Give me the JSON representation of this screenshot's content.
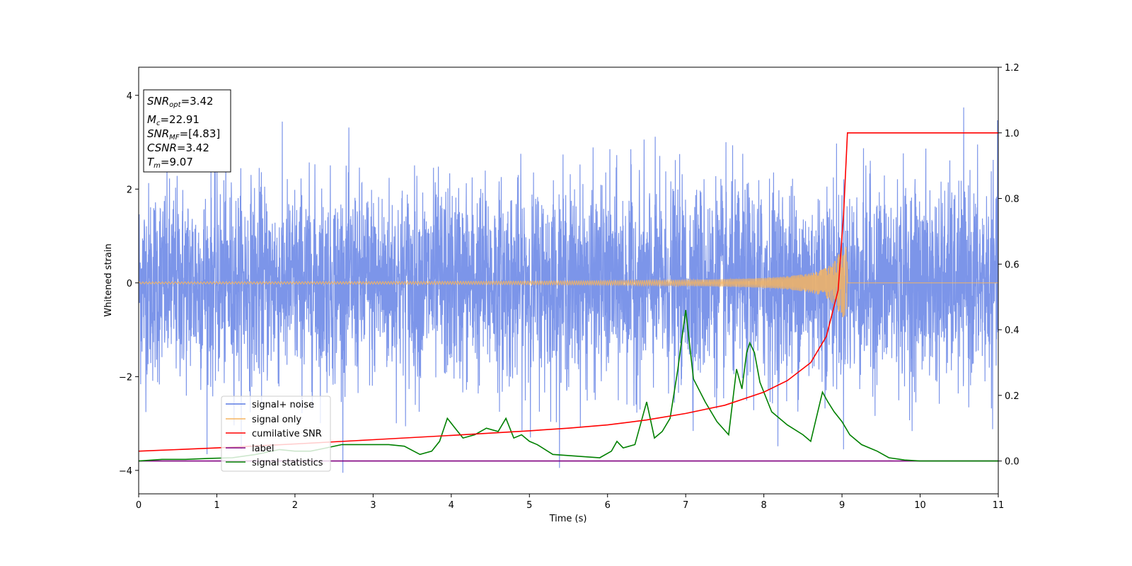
{
  "chart_data": {
    "type": "line",
    "xlabel": "Time (s)",
    "ylabel": "Whitened strain",
    "xlim": [
      0,
      11
    ],
    "ylim": [
      -4.5,
      4.6
    ],
    "y2lim": [
      -0.1,
      1.2
    ],
    "xticks": [
      "0",
      "1",
      "2",
      "3",
      "4",
      "5",
      "6",
      "7",
      "8",
      "9",
      "10",
      "11"
    ],
    "yticks": [
      "−4",
      "−2",
      "0",
      "2",
      "4"
    ],
    "y2ticks": [
      "0.0",
      "0.2",
      "0.4",
      "0.6",
      "0.8",
      "1.0",
      "1.2"
    ],
    "grid": false,
    "legend_position": "lower-left",
    "info_box": {
      "snr_opt": {
        "base": "SNR",
        "sub": "opt",
        "value": "=3.42"
      },
      "mc": {
        "base": "M",
        "sub": "c",
        "value": "=22.91"
      },
      "snr_mf": {
        "base": "SNR",
        "sub": "MF",
        "value": "=[4.83]"
      },
      "csnr": {
        "base": "CSNR",
        "sub": "",
        "value": "=3.42"
      },
      "tm": {
        "base": "T",
        "sub": "m",
        "value": "=9.07"
      }
    },
    "series": [
      {
        "name": "signal+ noise",
        "color": "#5b7be3",
        "axis": "left",
        "description_values": {
          "mean": 0.0,
          "std": 1.0,
          "typical_peak_range": [
            -3.5,
            3.7
          ]
        }
      },
      {
        "name": "signal only",
        "color": "#f5b461",
        "axis": "left",
        "chirp": {
          "start_amplitude": 0.02,
          "merger_time": 9.07,
          "peak_amplitude": 0.75
        }
      },
      {
        "name": "cumilative SNR",
        "color": "#ff0000",
        "axis": "right",
        "x": [
          0,
          1,
          2,
          3,
          4,
          5,
          5.5,
          6,
          6.5,
          7,
          7.5,
          8,
          8.3,
          8.6,
          8.8,
          8.95,
          9.02,
          9.07,
          9.5,
          10,
          11
        ],
        "y": [
          0.03,
          0.04,
          0.052,
          0.065,
          0.078,
          0.092,
          0.1,
          0.11,
          0.125,
          0.145,
          0.17,
          0.21,
          0.245,
          0.3,
          0.38,
          0.52,
          0.75,
          1.0,
          1.0,
          1.0,
          1.0
        ]
      },
      {
        "name": "label",
        "color": "#800080",
        "axis": "right",
        "x": [
          0,
          11
        ],
        "y": [
          0,
          0
        ]
      },
      {
        "name": "signal statistics",
        "color": "#008000",
        "axis": "right",
        "x": [
          0,
          0.3,
          0.6,
          0.9,
          1.2,
          1.5,
          1.8,
          2.0,
          2.2,
          2.4,
          2.6,
          2.8,
          3.0,
          3.2,
          3.4,
          3.6,
          3.75,
          3.85,
          3.95,
          4.05,
          4.15,
          4.3,
          4.45,
          4.6,
          4.7,
          4.8,
          4.9,
          5.0,
          5.1,
          5.3,
          5.6,
          5.9,
          6.05,
          6.12,
          6.2,
          6.35,
          6.5,
          6.6,
          6.7,
          6.8,
          6.9,
          7.0,
          7.1,
          7.25,
          7.4,
          7.55,
          7.65,
          7.72,
          7.78,
          7.82,
          7.88,
          7.95,
          8.1,
          8.3,
          8.5,
          8.6,
          8.75,
          8.82,
          8.9,
          9.0,
          9.1,
          9.25,
          9.45,
          9.6,
          9.8,
          10.0,
          10.5,
          11.0
        ],
        "y": [
          0.0,
          0.005,
          0.005,
          0.008,
          0.01,
          0.02,
          0.035,
          0.03,
          0.03,
          0.04,
          0.05,
          0.05,
          0.05,
          0.05,
          0.045,
          0.02,
          0.03,
          0.06,
          0.13,
          0.1,
          0.07,
          0.08,
          0.1,
          0.09,
          0.13,
          0.07,
          0.08,
          0.06,
          0.05,
          0.02,
          0.015,
          0.01,
          0.03,
          0.06,
          0.04,
          0.05,
          0.18,
          0.07,
          0.09,
          0.13,
          0.28,
          0.46,
          0.25,
          0.18,
          0.12,
          0.08,
          0.28,
          0.22,
          0.33,
          0.36,
          0.33,
          0.24,
          0.15,
          0.11,
          0.08,
          0.06,
          0.21,
          0.18,
          0.15,
          0.12,
          0.08,
          0.05,
          0.03,
          0.01,
          0.003,
          0.0,
          0.0,
          0.0
        ]
      }
    ]
  }
}
